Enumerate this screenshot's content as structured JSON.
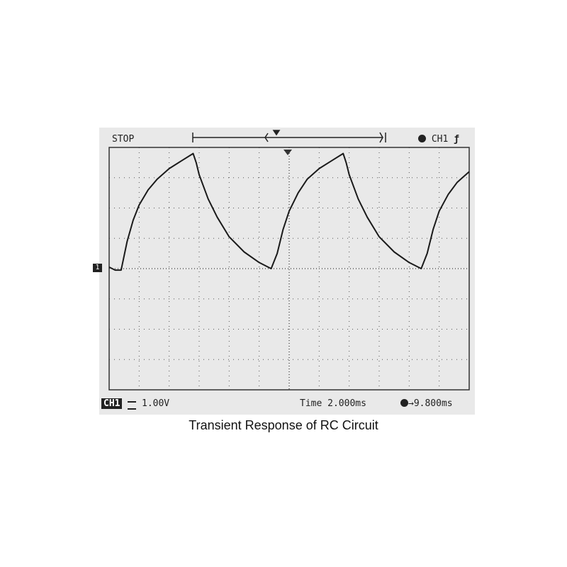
{
  "status": {
    "run_state": "STOP",
    "trigger_source": "CH1",
    "trigger_slope_icon": "rising-edge-icon",
    "channel_label": "CH1",
    "volts_per_div": "1.00V",
    "time_base": "Time 2.000ms",
    "trigger_position": "9.800ms",
    "channel_marker": "1"
  },
  "caption": "Transient Response of  RC Circuit",
  "chart_data": {
    "type": "line",
    "title": "Transient Response of  RC Circuit",
    "grid": true,
    "divisions": {
      "x": 12,
      "y": 8
    },
    "xlim": [
      0,
      12
    ],
    "ylim": [
      -4,
      4
    ],
    "x_unit": "div (2.000 ms/div)",
    "y_unit": "div (1.00 V/div)",
    "series": [
      {
        "x": [
          0,
          0.2,
          0.4,
          0.6,
          0.8,
          1.0,
          1.3,
          1.6,
          2.0,
          2.4,
          2.8,
          2.9,
          3.0,
          3.3,
          3.6,
          4.0,
          4.5,
          5.0,
          5.4,
          5.6,
          5.8,
          6.0,
          6.3,
          6.6,
          7.0,
          7.4,
          7.8,
          7.9,
          8.0,
          8.3,
          8.6,
          9.0,
          9.5,
          10.0,
          10.4,
          10.6,
          10.8,
          11.0,
          11.3,
          11.6,
          12.0
        ],
        "y": [
          0.05,
          -0.05,
          -0.05,
          0.9,
          1.6,
          2.1,
          2.6,
          2.95,
          3.3,
          3.55,
          3.8,
          3.5,
          3.1,
          2.3,
          1.7,
          1.05,
          0.55,
          0.2,
          0.0,
          0.5,
          1.3,
          1.9,
          2.5,
          2.95,
          3.3,
          3.55,
          3.8,
          3.5,
          3.1,
          2.3,
          1.7,
          1.05,
          0.55,
          0.2,
          0.0,
          0.5,
          1.3,
          1.9,
          2.45,
          2.85,
          3.2
        ]
      }
    ]
  }
}
